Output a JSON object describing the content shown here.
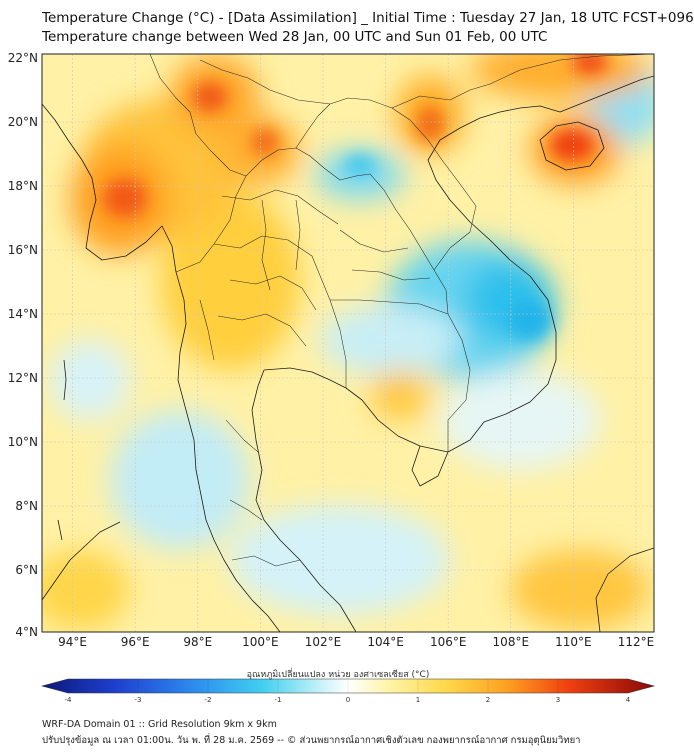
{
  "header": {
    "title_line1": "Temperature Change (°C) - [Data Assimilation] _ Initial Time : Tuesday 27 Jan, 18 UTC FCST+096",
    "title_line2": "Temperature change between Wed 28 Jan, 00 UTC and Sun 01 Feb, 00 UTC"
  },
  "map": {
    "lat_labels": [
      "22°N",
      "20°N",
      "18°N",
      "16°N",
      "14°N",
      "12°N",
      "10°N",
      "8°N",
      "6°N",
      "4°N"
    ],
    "lon_labels": [
      "94°E",
      "96°E",
      "98°E",
      "100°E",
      "102°E",
      "104°E",
      "106°E",
      "108°E",
      "110°E",
      "112°E"
    ]
  },
  "colorbar": {
    "label": "อุณหภูมิเปลี่ยนแปลง หน่วย องศาเซลเซียส (°C)",
    "ticks": [
      "-4",
      "-3",
      "-2",
      "-1",
      "0",
      "1",
      "2",
      "3",
      "4"
    ]
  },
  "footer": {
    "line1": "WRF-DA Domain 01 :: Grid Resolution 9km x 9km",
    "line2": "ปรับปรุงข้อมูล ณ เวลา 01:00น. วัน พ. ที่ 28 ม.ค. 2569 -- © ส่วนพยากรณ์อากาศเชิงตัวเลข กองพยากรณ์อากาศ กรมอุตุนิยมวิทยา"
  }
}
